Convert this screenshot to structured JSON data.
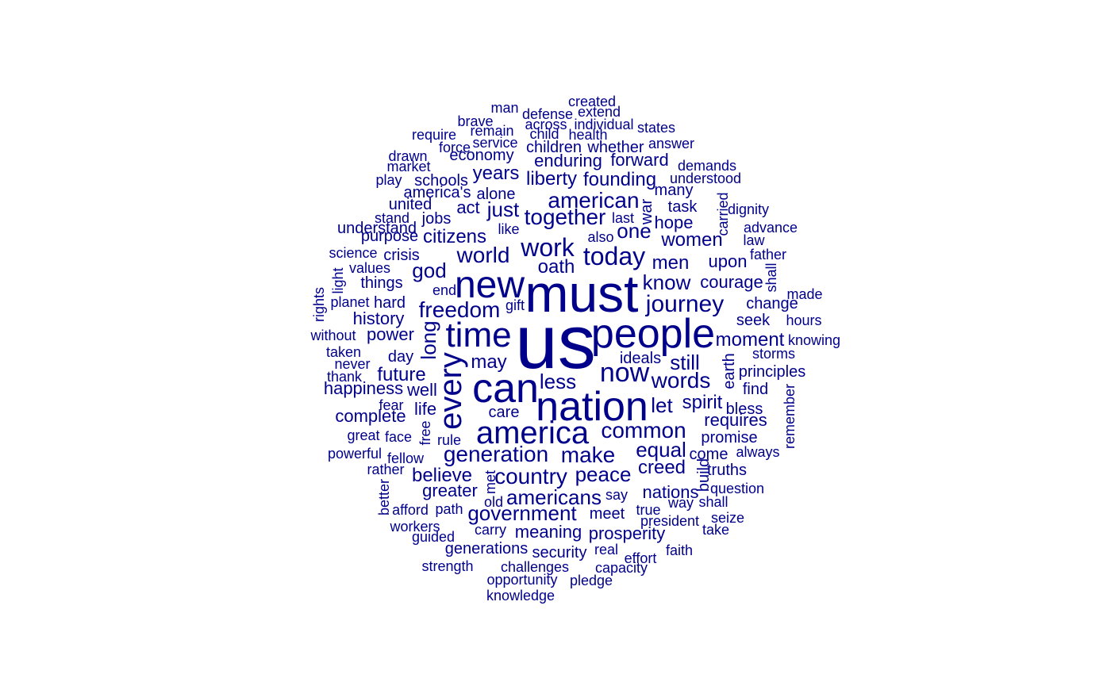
{
  "color": "#00008B",
  "words": [
    {
      "text": "us"
    },
    {
      "text": "must"
    },
    {
      "text": "nation"
    },
    {
      "text": "people"
    },
    {
      "text": "can"
    },
    {
      "text": "new"
    },
    {
      "text": "time"
    },
    {
      "text": "america"
    },
    {
      "text": "every"
    },
    {
      "text": "now"
    },
    {
      "text": "today"
    },
    {
      "text": "work"
    },
    {
      "text": "journey"
    },
    {
      "text": "common"
    },
    {
      "text": "generation"
    },
    {
      "text": "american"
    },
    {
      "text": "together"
    },
    {
      "text": "world"
    },
    {
      "text": "words"
    },
    {
      "text": "make"
    },
    {
      "text": "freedom"
    },
    {
      "text": "country"
    },
    {
      "text": "government"
    },
    {
      "text": "americans"
    },
    {
      "text": "one"
    },
    {
      "text": "just"
    },
    {
      "text": "let"
    },
    {
      "text": "still"
    },
    {
      "text": "know"
    },
    {
      "text": "equal"
    },
    {
      "text": "peace"
    },
    {
      "text": "long"
    },
    {
      "text": "less"
    },
    {
      "text": "god"
    },
    {
      "text": "liberty"
    },
    {
      "text": "oath"
    },
    {
      "text": "men"
    },
    {
      "text": "women"
    },
    {
      "text": "citizens"
    },
    {
      "text": "believe"
    },
    {
      "text": "creed"
    },
    {
      "text": "spirit"
    },
    {
      "text": "moment"
    },
    {
      "text": "may"
    },
    {
      "text": "future"
    },
    {
      "text": "founding"
    },
    {
      "text": "years"
    },
    {
      "text": "nations"
    },
    {
      "text": "history"
    },
    {
      "text": "power"
    },
    {
      "text": "happiness"
    },
    {
      "text": "well"
    },
    {
      "text": "life"
    },
    {
      "text": "complete"
    },
    {
      "text": "requires"
    },
    {
      "text": "hope"
    },
    {
      "text": "upon"
    },
    {
      "text": "courage"
    },
    {
      "text": "act"
    },
    {
      "text": "enduring"
    },
    {
      "text": "forward"
    },
    {
      "text": "greater"
    },
    {
      "text": "meaning"
    },
    {
      "text": "prosperity"
    },
    {
      "text": "generations"
    },
    {
      "text": "security"
    },
    {
      "text": "jobs"
    },
    {
      "text": "crisis"
    },
    {
      "text": "things"
    },
    {
      "text": "day"
    },
    {
      "text": "care"
    },
    {
      "text": "task"
    },
    {
      "text": "many"
    },
    {
      "text": "seek"
    },
    {
      "text": "change"
    },
    {
      "text": "earth"
    },
    {
      "text": "war"
    },
    {
      "text": "meet"
    },
    {
      "text": "ideals"
    },
    {
      "text": "understand"
    },
    {
      "text": "children"
    },
    {
      "text": "whether"
    },
    {
      "text": "economy"
    },
    {
      "text": "schools"
    },
    {
      "text": "america's"
    },
    {
      "text": "alone"
    },
    {
      "text": "united"
    },
    {
      "text": "purpose"
    },
    {
      "text": "hard"
    },
    {
      "text": "build"
    },
    {
      "text": "promise"
    },
    {
      "text": "come"
    },
    {
      "text": "truths"
    },
    {
      "text": "question"
    },
    {
      "text": "find"
    },
    {
      "text": "bless"
    },
    {
      "text": "principles"
    },
    {
      "text": "storms"
    },
    {
      "text": "knowing"
    },
    {
      "text": "hours"
    },
    {
      "text": "made"
    },
    {
      "text": "shall"
    },
    {
      "text": "father"
    },
    {
      "text": "law"
    },
    {
      "text": "advance"
    },
    {
      "text": "dignity"
    },
    {
      "text": "understood"
    },
    {
      "text": "demands"
    },
    {
      "text": "answer"
    },
    {
      "text": "states"
    },
    {
      "text": "individual"
    },
    {
      "text": "extend"
    },
    {
      "text": "created"
    },
    {
      "text": "defense"
    },
    {
      "text": "across"
    },
    {
      "text": "man"
    },
    {
      "text": "brave"
    },
    {
      "text": "remain"
    },
    {
      "text": "require"
    },
    {
      "text": "service"
    },
    {
      "text": "force"
    },
    {
      "text": "child"
    },
    {
      "text": "health"
    },
    {
      "text": "drawn"
    },
    {
      "text": "market"
    },
    {
      "text": "play"
    },
    {
      "text": "stand"
    },
    {
      "text": "last"
    },
    {
      "text": "also"
    },
    {
      "text": "like"
    },
    {
      "text": "science"
    },
    {
      "text": "values"
    },
    {
      "text": "light"
    },
    {
      "text": "rights"
    },
    {
      "text": "planet"
    },
    {
      "text": "end"
    },
    {
      "text": "gift"
    },
    {
      "text": "without"
    },
    {
      "text": "taken"
    },
    {
      "text": "never"
    },
    {
      "text": "thank"
    },
    {
      "text": "fear"
    },
    {
      "text": "free"
    },
    {
      "text": "great"
    },
    {
      "text": "face"
    },
    {
      "text": "rule"
    },
    {
      "text": "powerful"
    },
    {
      "text": "fellow"
    },
    {
      "text": "rather"
    },
    {
      "text": "better"
    },
    {
      "text": "afford"
    },
    {
      "text": "path"
    },
    {
      "text": "old"
    },
    {
      "text": "met"
    },
    {
      "text": "say"
    },
    {
      "text": "true"
    },
    {
      "text": "way"
    },
    {
      "text": "shall"
    },
    {
      "text": "seize"
    },
    {
      "text": "take"
    },
    {
      "text": "president"
    },
    {
      "text": "workers"
    },
    {
      "text": "guided"
    },
    {
      "text": "carry"
    },
    {
      "text": "real"
    },
    {
      "text": "effort"
    },
    {
      "text": "faith"
    },
    {
      "text": "strength"
    },
    {
      "text": "challenges"
    },
    {
      "text": "capacity"
    },
    {
      "text": "opportunity"
    },
    {
      "text": "pledge"
    },
    {
      "text": "knowledge"
    },
    {
      "text": "carried"
    },
    {
      "text": "remember"
    },
    {
      "text": "always"
    }
  ]
}
